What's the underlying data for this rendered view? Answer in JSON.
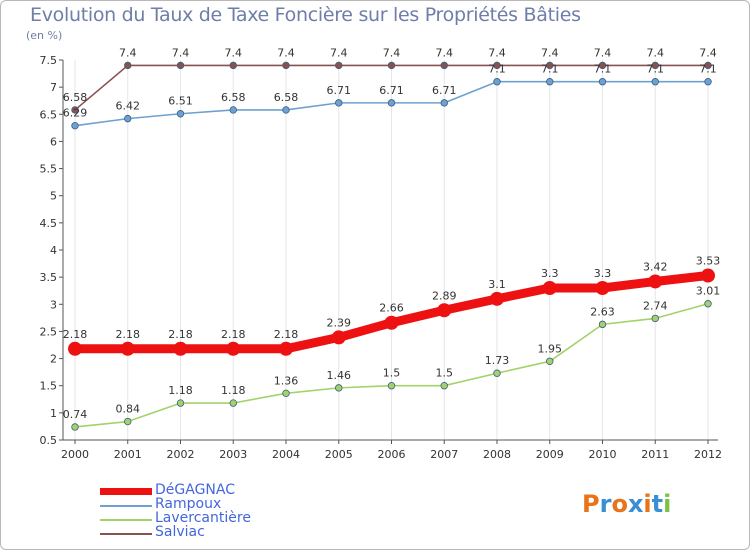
{
  "title": "Evolution du Taux de Taxe Foncière sur les Propriétés Bâties",
  "unit_label": "(en %)",
  "logo": {
    "text": "Proxiti",
    "colors": [
      "#e8731a",
      "#3a8fd4",
      "#e8731a",
      "#3a8fd4",
      "#e8731a",
      "#3a8fd4",
      "#7cc242"
    ]
  },
  "chart_data": {
    "type": "line",
    "title": "Evolution du Taux de Taxe Foncière sur les Propriétés Bâties",
    "ylabel": "(en %)",
    "xlabel": "",
    "ylim": [
      0.5,
      7.5
    ],
    "yticks": [
      "0.5",
      "1",
      "1.5",
      "2",
      "2.5",
      "3",
      "3.5",
      "4",
      "4.5",
      "5",
      "5.5",
      "6",
      "6.5",
      "7",
      "7.5"
    ],
    "x": [
      "2000",
      "2001",
      "2002",
      "2003",
      "2004",
      "2005",
      "2006",
      "2007",
      "2008",
      "2009",
      "2010",
      "2011",
      "2012"
    ],
    "series": [
      {
        "name": "DéGAGNAC",
        "color": "#ee1111",
        "bold": true,
        "values": [
          2.18,
          2.18,
          2.18,
          2.18,
          2.18,
          2.39,
          2.66,
          2.89,
          3.1,
          3.3,
          3.3,
          3.42,
          3.53
        ],
        "labels": [
          "2.18",
          "2.18",
          "2.18",
          "2.18",
          "2.18",
          "2.39",
          "2.66",
          "2.89",
          "3.1",
          "3.3",
          "3.3",
          "3.42",
          "3.53"
        ]
      },
      {
        "name": "Rampoux",
        "color": "#6ea1cf",
        "bold": false,
        "values": [
          6.29,
          6.42,
          6.51,
          6.58,
          6.58,
          6.71,
          6.71,
          6.71,
          7.1,
          7.1,
          7.1,
          7.1,
          7.1
        ],
        "labels": [
          "6.29",
          "6.42",
          "6.51",
          "6.58",
          "6.58",
          "6.71",
          "6.71",
          "6.71",
          "7.1",
          "7.1",
          "7.1",
          "7.1",
          "7.1"
        ]
      },
      {
        "name": "Lavercantière",
        "color": "#a4d26a",
        "bold": false,
        "values": [
          0.74,
          0.84,
          1.18,
          1.18,
          1.36,
          1.46,
          1.5,
          1.5,
          1.73,
          1.95,
          2.63,
          2.74,
          3.01
        ],
        "labels": [
          "0.74",
          "0.84",
          "1.18",
          "1.18",
          "1.36",
          "1.46",
          "1.5",
          "1.5",
          "1.73",
          "1.95",
          "2.63",
          "2.74",
          "3.01"
        ]
      },
      {
        "name": "Salviac",
        "color": "#8a5151",
        "bold": false,
        "values": [
          6.58,
          7.4,
          7.4,
          7.4,
          7.4,
          7.4,
          7.4,
          7.4,
          7.4,
          7.4,
          7.4,
          7.4,
          7.4
        ],
        "labels": [
          "6.58",
          "7.4",
          "7.4",
          "7.4",
          "7.4",
          "7.4",
          "7.4",
          "7.4",
          "7.4",
          "7.4",
          "7.4",
          "7.4",
          "7.4"
        ]
      }
    ],
    "legend_position": "bottom-left"
  }
}
